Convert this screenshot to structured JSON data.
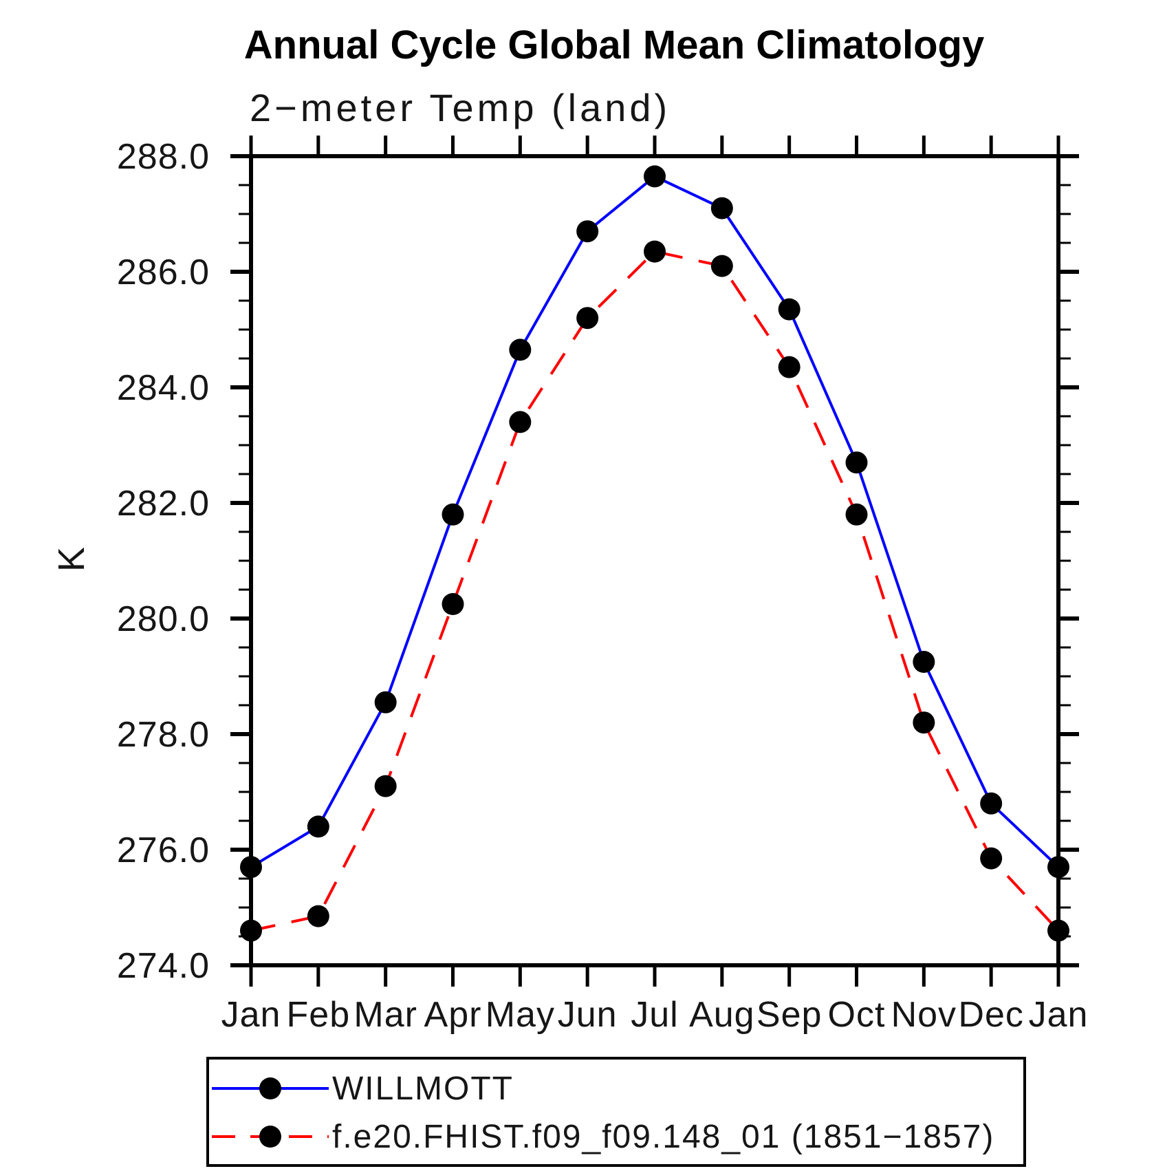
{
  "title": "Annual Cycle Global Mean Climatology",
  "subtitle": "2−meter Temp (land)",
  "y_axis_unit": "K",
  "chart_data": {
    "type": "line",
    "x_categories": [
      "Jan",
      "Feb",
      "Mar",
      "Apr",
      "May",
      "Jun",
      "Jul",
      "Aug",
      "Sep",
      "Oct",
      "Nov",
      "Dec",
      "Jan"
    ],
    "series": [
      {
        "name": "WILLMOTT",
        "color": "#0000ff",
        "line_style": "solid",
        "marker": "filled-circle",
        "marker_color": "#000000",
        "values": [
          275.7,
          276.4,
          278.55,
          281.8,
          284.65,
          286.7,
          287.65,
          287.1,
          285.35,
          282.7,
          279.25,
          276.8,
          275.7
        ]
      },
      {
        "name": "f.e20.FHIST.f09_f09.148_01 (1851−1857)",
        "color": "#ff0000",
        "line_style": "dashed",
        "marker": "filled-circle",
        "marker_color": "#000000",
        "values": [
          274.6,
          274.85,
          277.1,
          280.25,
          283.4,
          285.2,
          286.35,
          286.1,
          284.35,
          281.8,
          278.2,
          275.85,
          274.6
        ]
      }
    ],
    "ylim": [
      274.0,
      288.0
    ],
    "y_major_ticks": [
      274.0,
      276.0,
      278.0,
      280.0,
      282.0,
      284.0,
      286.0,
      288.0
    ],
    "y_minor_step": 0.5,
    "y_tick_decimals": 1,
    "xlabel": "",
    "ylabel": "K",
    "grid": false,
    "legend_position": "bottom-box"
  }
}
